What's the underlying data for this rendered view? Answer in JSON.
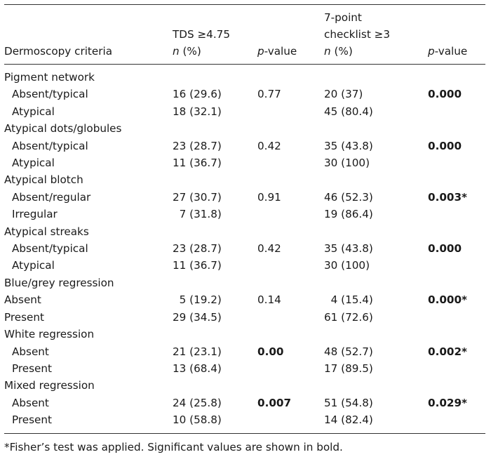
{
  "header": {
    "criteria": "Dermoscopy criteria",
    "tds_line1": "TDS ≥4.75",
    "n_pct": "(%)",
    "n": "n",
    "p": "p",
    "value_suffix": "-value",
    "cl_line1": "7-point",
    "cl_line2": "checklist ≥3"
  },
  "rows": [
    {
      "kind": "cat",
      "label": "Pigment network"
    },
    {
      "kind": "sub",
      "label": "Absent/typical",
      "tds": "16 (29.6)",
      "tds_p": "0.77",
      "tds_p_bold": false,
      "cl": "20 (37)",
      "cl_p": "0.000",
      "cl_p_bold": true,
      "indent": true
    },
    {
      "kind": "sub",
      "label": "Atypical",
      "tds": "18 (32.1)",
      "tds_p": "",
      "cl": "45 (80.4)",
      "cl_p": "",
      "indent": true
    },
    {
      "kind": "cat",
      "label": "Atypical dots/globules"
    },
    {
      "kind": "sub",
      "label": "Absent/typical",
      "tds": "23 (28.7)",
      "tds_p": "0.42",
      "tds_p_bold": false,
      "cl": "35 (43.8)",
      "cl_p": "0.000",
      "cl_p_bold": true,
      "indent": true
    },
    {
      "kind": "sub",
      "label": "Atypical",
      "tds": "11 (36.7)",
      "tds_p": "",
      "cl": "30 (100)",
      "cl_p": "",
      "indent": true
    },
    {
      "kind": "cat",
      "label": "Atypical blotch"
    },
    {
      "kind": "sub",
      "label": "Absent/regular",
      "tds": "27 (30.7)",
      "tds_p": "0.91",
      "tds_p_bold": false,
      "cl": "46 (52.3)",
      "cl_p": "0.003*",
      "cl_p_bold": true,
      "indent": true
    },
    {
      "kind": "sub",
      "label": "Irregular",
      "tds": "  7 (31.8)",
      "tds_p": "",
      "cl": "19 (86.4)",
      "cl_p": "",
      "indent": true
    },
    {
      "kind": "cat",
      "label": "Atypical streaks"
    },
    {
      "kind": "sub",
      "label": "Absent/typical",
      "tds": "23 (28.7)",
      "tds_p": "0.42",
      "tds_p_bold": false,
      "cl": "35 (43.8)",
      "cl_p": "0.000",
      "cl_p_bold": true,
      "indent": true
    },
    {
      "kind": "sub",
      "label": "Atypical",
      "tds": "11 (36.7)",
      "tds_p": "",
      "cl": "30 (100)",
      "cl_p": "",
      "indent": true
    },
    {
      "kind": "cat",
      "label": "Blue/grey regression"
    },
    {
      "kind": "sub",
      "label": "Absent",
      "tds": "  5 (19.2)",
      "tds_p": "0.14",
      "tds_p_bold": false,
      "cl": "  4 (15.4)",
      "cl_p": "0.000*",
      "cl_p_bold": true,
      "indent": false
    },
    {
      "kind": "sub",
      "label": "Present",
      "tds": "29 (34.5)",
      "tds_p": "",
      "cl": "61 (72.6)",
      "cl_p": "",
      "indent": false
    },
    {
      "kind": "cat",
      "label": "White regression"
    },
    {
      "kind": "sub",
      "label": "Absent",
      "tds": "21 (23.1)",
      "tds_p": "0.00",
      "tds_p_bold": true,
      "cl": "48 (52.7)",
      "cl_p": "0.002*",
      "cl_p_bold": true,
      "indent": true
    },
    {
      "kind": "sub",
      "label": "Present",
      "tds": "13 (68.4)",
      "tds_p": "",
      "cl": "17 (89.5)",
      "cl_p": "",
      "indent": true
    },
    {
      "kind": "cat",
      "label": "Mixed regression"
    },
    {
      "kind": "sub",
      "label": "Absent",
      "tds": "24 (25.8)",
      "tds_p": "0.007",
      "tds_p_bold": true,
      "cl": "51 (54.8)",
      "cl_p": "0.029*",
      "cl_p_bold": true,
      "indent": true
    },
    {
      "kind": "sub",
      "label": "Present",
      "tds": "10 (58.8)",
      "tds_p": "",
      "cl": "14 (82.4)",
      "cl_p": "",
      "indent": true
    }
  ],
  "footnote": "*Fisher’s test was applied. Significant values are shown in bold."
}
